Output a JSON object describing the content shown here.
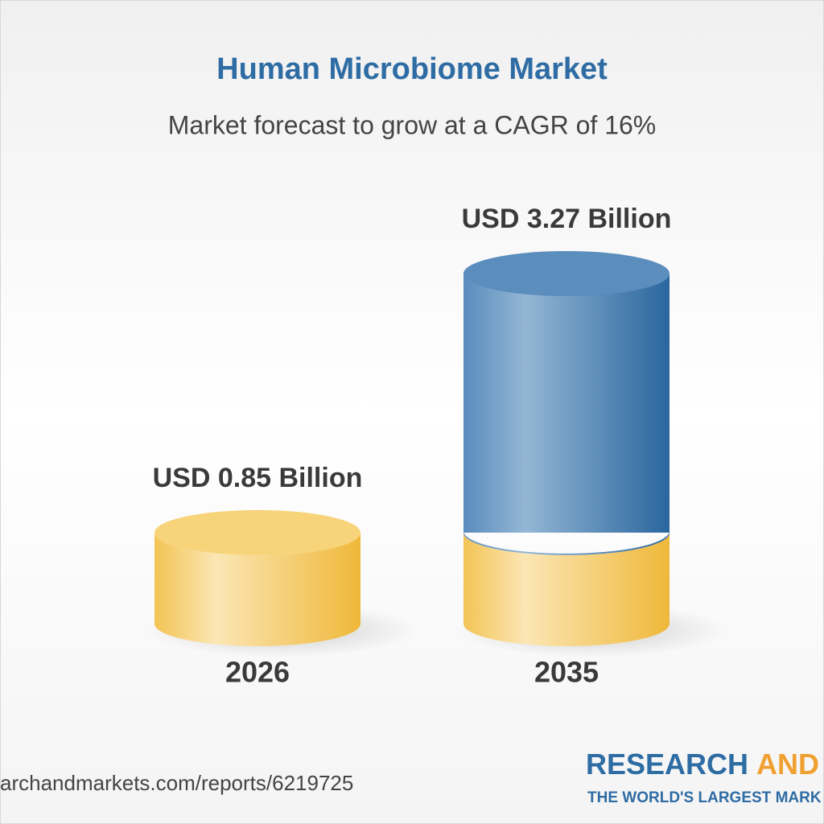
{
  "chart_data": {
    "type": "bar",
    "title": "Human Microbiome Market",
    "subtitle": "Market forecast to grow at a CAGR of 16%",
    "categories": [
      "2026",
      "2035"
    ],
    "values": [
      0.85,
      3.27
    ],
    "value_labels": [
      "USD 0.85 Billion",
      "USD 3.27 Billion"
    ],
    "colors": [
      "#f3c455",
      "#2e6ca4"
    ],
    "source": "archandmarkets.com/reports/6219725",
    "brand": [
      "RESEARCH",
      "AND"
    ],
    "tagline": "THE WORLD'S LARGEST MARK"
  }
}
